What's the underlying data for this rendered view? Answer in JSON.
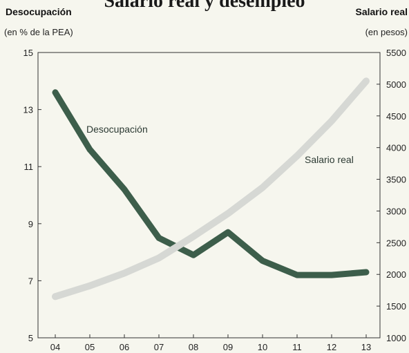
{
  "chart_data": {
    "type": "line",
    "title": "Salario real y desempleo",
    "y_left": {
      "title": "Desocupación",
      "unit": "(en % de la PEA)",
      "ylim": [
        5,
        15
      ],
      "ticks": [
        5,
        7,
        9,
        11,
        13,
        15
      ]
    },
    "y_right": {
      "title": "Salario real",
      "unit": "(en pesos)",
      "ylim": [
        1000,
        5500
      ],
      "ticks": [
        1000,
        1500,
        2000,
        2500,
        3000,
        3500,
        4000,
        4500,
        5000,
        5500
      ]
    },
    "x": [
      "04",
      "05",
      "06",
      "07",
      "08",
      "09",
      "10",
      "11",
      "12",
      "13"
    ],
    "series": [
      {
        "name": "Desocupación",
        "axis": "left",
        "color": "#3d5e4b",
        "values": [
          13.6,
          11.6,
          10.2,
          8.5,
          7.9,
          8.7,
          7.7,
          7.2,
          7.2,
          7.3
        ]
      },
      {
        "name": "Salario real",
        "axis": "right",
        "color": "#d6d8d4",
        "values": [
          1650,
          1820,
          2020,
          2260,
          2600,
          2960,
          3370,
          3870,
          4420,
          5050
        ]
      }
    ],
    "grid": false,
    "legend": "inline labels"
  }
}
